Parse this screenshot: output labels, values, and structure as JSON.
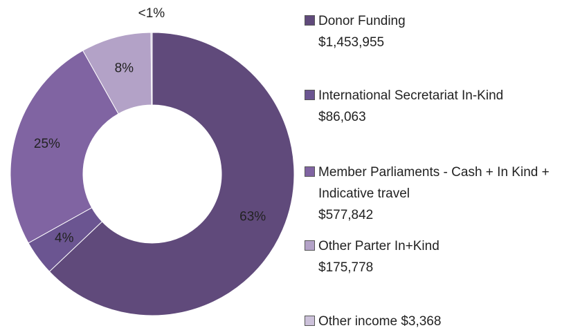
{
  "chart_data": {
    "type": "pie",
    "categories": [
      "Donor Funding",
      "International Secretariat In-Kind",
      "Member Parliaments - Cash + In Kind + Indicative travel",
      "Other Parter In+Kind",
      "Other income"
    ],
    "legend_amounts": [
      "$1,453,955",
      "$86,063",
      "$577,842",
      "$175,778",
      "$3,368"
    ],
    "values": [
      63,
      4,
      25,
      8,
      0.15
    ],
    "value_labels": [
      "63%",
      "4%",
      "25%",
      "8%",
      "<1%"
    ],
    "colors": [
      "#604a7b",
      "#6b5591",
      "#8064a2",
      "#b3a2c7",
      "#ccc1da"
    ]
  }
}
